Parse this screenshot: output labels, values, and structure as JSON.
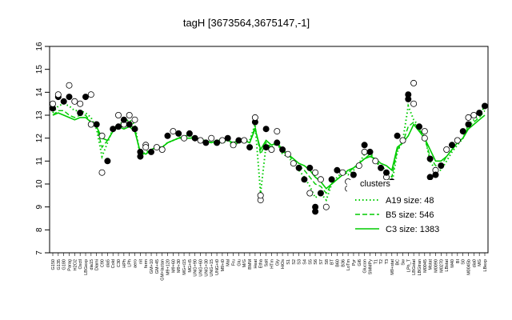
{
  "chart_data": {
    "type": "line",
    "title": "tagH [3673564,3675147,-1]",
    "xlabel": "",
    "ylabel": "",
    "ylim": [
      7,
      16
    ],
    "yticks": [
      7,
      8,
      9,
      10,
      11,
      12,
      13,
      14,
      15,
      16
    ],
    "grid": false,
    "legend": {
      "title": "clusters",
      "placement": "right",
      "entries": [
        {
          "label": "A19 size: 48",
          "style": "dotted",
          "color": "#00cc00"
        },
        {
          "label": "B5 size: 546",
          "style": "dashed",
          "color": "#00cc00"
        },
        {
          "label": "C3 size: 1383",
          "style": "solid",
          "color": "#00cc00"
        }
      ]
    },
    "x_labels": [
      "G150",
      "G135",
      "G180",
      "Parag",
      "H2O2",
      "Oxctl",
      "LBGexp",
      "dia15",
      "Diami",
      "C90",
      "dia5",
      "Cold",
      "C30",
      "HPh",
      "LPh",
      "aero",
      "nit",
      "ferm",
      "GM+10",
      "GM+45",
      "GM+lactan",
      "M9+120",
      "M9+60",
      "M9+30",
      "MG+t15",
      "MG+t5",
      "UNG+90",
      "UNG+60",
      "UNG+30",
      "UNG+15",
      "UNG+t0",
      "M9+t0",
      "Mal",
      "Fru",
      "Glu",
      "M/G",
      "BMM",
      "Heat",
      "Etha",
      "Salt",
      "HTm",
      "Gly",
      "HiOs",
      "S1",
      "S2",
      "S3",
      "S4",
      "S5",
      "S6",
      "S7",
      "S8",
      "BT",
      "B60",
      "B36",
      "LoTm",
      "Pyr",
      "Gl6",
      "Glucon",
      "SMMPy",
      "T1",
      "T2",
      "T3",
      "M9+stat",
      "BC",
      "Sw",
      "LPh_T",
      "LBGstat",
      "LBGtran",
      "M0045",
      "Mstat",
      "M0090",
      "M0270",
      "LBstat",
      "M40",
      "BI",
      "S0",
      "M0045b",
      "dia0",
      "MG",
      "LBexp"
    ],
    "series": [
      {
        "name": "C3",
        "style": "solid",
        "values": [
          13.0,
          13.1,
          13.0,
          12.9,
          12.8,
          12.9,
          12.9,
          12.7,
          12.5,
          12.0,
          11.9,
          12.3,
          12.5,
          12.4,
          12.5,
          12.3,
          11.4,
          11.3,
          11.5,
          11.6,
          11.6,
          11.8,
          11.9,
          12.0,
          12.0,
          12.0,
          12.0,
          11.9,
          11.9,
          11.8,
          11.9,
          11.9,
          11.9,
          11.8,
          11.9,
          11.9,
          11.8,
          12.4,
          11.5,
          11.9,
          11.7,
          11.8,
          11.5,
          11.3,
          11.1,
          10.9,
          10.8,
          10.6,
          10.3,
          10.1,
          9.8,
          10.0,
          10.2,
          10.4,
          10.6,
          10.7,
          10.9,
          11.1,
          11.2,
          11.1,
          10.9,
          10.8,
          10.6,
          11.6,
          11.8,
          12.1,
          12.6,
          12.3,
          12.0,
          11.5,
          11.0,
          11.0,
          11.2,
          11.5,
          11.8,
          12.0,
          12.4,
          12.6,
          12.8,
          13.0
        ]
      },
      {
        "name": "B5",
        "style": "dashed",
        "values": [
          13.0,
          13.2,
          13.2,
          13.0,
          12.9,
          13.0,
          13.0,
          12.7,
          12.5,
          11.6,
          11.9,
          12.3,
          12.5,
          12.5,
          12.6,
          12.4,
          11.3,
          11.3,
          11.5,
          11.6,
          11.6,
          11.8,
          11.9,
          12.0,
          12.1,
          12.1,
          12.0,
          11.9,
          11.9,
          11.8,
          11.9,
          11.9,
          11.9,
          11.8,
          11.9,
          11.9,
          11.8,
          12.5,
          11.3,
          11.8,
          11.6,
          11.8,
          11.4,
          11.3,
          11.0,
          10.8,
          10.6,
          10.3,
          10.0,
          9.9,
          9.6,
          10.0,
          10.2,
          10.4,
          10.5,
          10.7,
          10.9,
          11.1,
          11.3,
          11.0,
          10.8,
          10.6,
          10.3,
          11.5,
          11.8,
          12.5,
          12.7,
          12.4,
          12.0,
          11.2,
          10.8,
          10.8,
          11.2,
          11.5,
          11.8,
          12.0,
          12.5,
          12.7,
          12.9,
          13.2
        ]
      },
      {
        "name": "A19",
        "style": "dotted",
        "values": [
          13.1,
          13.4,
          13.5,
          13.4,
          13.2,
          13.2,
          13.1,
          12.9,
          12.4,
          11.2,
          11.8,
          12.4,
          12.6,
          12.7,
          12.8,
          12.6,
          11.2,
          11.4,
          11.5,
          11.6,
          11.6,
          11.8,
          11.9,
          12.0,
          12.1,
          12.1,
          12.0,
          11.9,
          11.9,
          11.8,
          11.8,
          11.8,
          11.9,
          11.7,
          11.8,
          11.9,
          11.9,
          12.6,
          9.6,
          11.7,
          11.6,
          11.8,
          11.3,
          11.2,
          10.9,
          10.6,
          10.3,
          9.9,
          9.4,
          9.6,
          9.3,
          10.0,
          10.3,
          10.5,
          10.4,
          10.6,
          10.9,
          11.3,
          11.4,
          11.0,
          10.7,
          10.4,
          10.0,
          11.4,
          11.9,
          13.4,
          12.8,
          12.5,
          12.1,
          11.0,
          10.6,
          10.6,
          11.0,
          11.4,
          11.7,
          12.0,
          12.6,
          12.8,
          13.0,
          13.4
        ]
      }
    ],
    "points": [
      {
        "x": 0,
        "y": 13.3,
        "filled": true
      },
      {
        "x": 0,
        "y": 13.5,
        "filled": false
      },
      {
        "x": 1,
        "y": 13.8,
        "filled": true
      },
      {
        "x": 1,
        "y": 13.9,
        "filled": false
      },
      {
        "x": 2,
        "y": 13.6,
        "filled": true
      },
      {
        "x": 3,
        "y": 14.3,
        "filled": false
      },
      {
        "x": 3,
        "y": 13.8,
        "filled": true
      },
      {
        "x": 4,
        "y": 13.6,
        "filled": false
      },
      {
        "x": 5,
        "y": 13.5,
        "filled": false
      },
      {
        "x": 5,
        "y": 13.1,
        "filled": true
      },
      {
        "x": 6,
        "y": 13.8,
        "filled": true
      },
      {
        "x": 7,
        "y": 12.6,
        "filled": false
      },
      {
        "x": 7,
        "y": 13.9,
        "filled": false
      },
      {
        "x": 8,
        "y": 12.6,
        "filled": true
      },
      {
        "x": 9,
        "y": 10.5,
        "filled": false
      },
      {
        "x": 9,
        "y": 12.1,
        "filled": false
      },
      {
        "x": 10,
        "y": 11.0,
        "filled": true
      },
      {
        "x": 11,
        "y": 12.4,
        "filled": true
      },
      {
        "x": 12,
        "y": 13.0,
        "filled": false
      },
      {
        "x": 12,
        "y": 12.5,
        "filled": true
      },
      {
        "x": 13,
        "y": 12.6,
        "filled": false
      },
      {
        "x": 13,
        "y": 12.8,
        "filled": true
      },
      {
        "x": 14,
        "y": 13.0,
        "filled": false
      },
      {
        "x": 14,
        "y": 12.6,
        "filled": true
      },
      {
        "x": 15,
        "y": 12.8,
        "filled": false
      },
      {
        "x": 15,
        "y": 12.4,
        "filled": true
      },
      {
        "x": 16,
        "y": 11.4,
        "filled": true
      },
      {
        "x": 16,
        "y": 11.2,
        "filled": true
      },
      {
        "x": 17,
        "y": 11.7,
        "filled": false
      },
      {
        "x": 17,
        "y": 11.6,
        "filled": false
      },
      {
        "x": 18,
        "y": 11.4,
        "filled": true
      },
      {
        "x": 19,
        "y": 11.6,
        "filled": false
      },
      {
        "x": 20,
        "y": 11.5,
        "filled": false
      },
      {
        "x": 21,
        "y": 12.1,
        "filled": true
      },
      {
        "x": 22,
        "y": 12.3,
        "filled": false
      },
      {
        "x": 23,
        "y": 12.2,
        "filled": true
      },
      {
        "x": 24,
        "y": 12.0,
        "filled": false
      },
      {
        "x": 25,
        "y": 12.2,
        "filled": true
      },
      {
        "x": 26,
        "y": 12.0,
        "filled": true
      },
      {
        "x": 27,
        "y": 11.9,
        "filled": false
      },
      {
        "x": 28,
        "y": 11.8,
        "filled": true
      },
      {
        "x": 29,
        "y": 12.0,
        "filled": false
      },
      {
        "x": 30,
        "y": 11.8,
        "filled": true
      },
      {
        "x": 31,
        "y": 11.9,
        "filled": false
      },
      {
        "x": 32,
        "y": 12.0,
        "filled": true
      },
      {
        "x": 33,
        "y": 11.7,
        "filled": false
      },
      {
        "x": 34,
        "y": 11.9,
        "filled": true
      },
      {
        "x": 35,
        "y": 11.9,
        "filled": false
      },
      {
        "x": 36,
        "y": 11.6,
        "filled": true
      },
      {
        "x": 37,
        "y": 12.7,
        "filled": true
      },
      {
        "x": 37,
        "y": 12.9,
        "filled": false
      },
      {
        "x": 38,
        "y": 9.3,
        "filled": false
      },
      {
        "x": 38,
        "y": 9.5,
        "filled": false
      },
      {
        "x": 39,
        "y": 12.4,
        "filled": true
      },
      {
        "x": 39,
        "y": 11.6,
        "filled": true
      },
      {
        "x": 40,
        "y": 11.5,
        "filled": false
      },
      {
        "x": 41,
        "y": 12.3,
        "filled": false
      },
      {
        "x": 41,
        "y": 11.8,
        "filled": true
      },
      {
        "x": 42,
        "y": 11.5,
        "filled": true
      },
      {
        "x": 43,
        "y": 11.3,
        "filled": false
      },
      {
        "x": 44,
        "y": 10.9,
        "filled": false
      },
      {
        "x": 45,
        "y": 10.7,
        "filled": true
      },
      {
        "x": 46,
        "y": 10.2,
        "filled": true
      },
      {
        "x": 47,
        "y": 10.7,
        "filled": true
      },
      {
        "x": 47,
        "y": 9.6,
        "filled": false
      },
      {
        "x": 48,
        "y": 8.8,
        "filled": true
      },
      {
        "x": 48,
        "y": 9.0,
        "filled": true
      },
      {
        "x": 48,
        "y": 10.5,
        "filled": false
      },
      {
        "x": 49,
        "y": 10.2,
        "filled": false
      },
      {
        "x": 49,
        "y": 9.6,
        "filled": true
      },
      {
        "x": 50,
        "y": 9.0,
        "filled": false
      },
      {
        "x": 51,
        "y": 10.2,
        "filled": true
      },
      {
        "x": 52,
        "y": 10.6,
        "filled": true
      },
      {
        "x": 53,
        "y": 10.5,
        "filled": false
      },
      {
        "x": 54,
        "y": 9.8,
        "filled": false
      },
      {
        "x": 54,
        "y": 10.1,
        "filled": false
      },
      {
        "x": 55,
        "y": 10.4,
        "filled": true
      },
      {
        "x": 56,
        "y": 10.8,
        "filled": false
      },
      {
        "x": 57,
        "y": 11.7,
        "filled": true
      },
      {
        "x": 57,
        "y": 11.4,
        "filled": false
      },
      {
        "x": 58,
        "y": 11.4,
        "filled": true
      },
      {
        "x": 59,
        "y": 11.0,
        "filled": false
      },
      {
        "x": 60,
        "y": 10.7,
        "filled": true
      },
      {
        "x": 61,
        "y": 10.3,
        "filled": false
      },
      {
        "x": 61,
        "y": 10.5,
        "filled": true
      },
      {
        "x": 62,
        "y": 9.9,
        "filled": false
      },
      {
        "x": 62,
        "y": 10.1,
        "filled": true
      },
      {
        "x": 63,
        "y": 12.1,
        "filled": true
      },
      {
        "x": 64,
        "y": 11.9,
        "filled": false
      },
      {
        "x": 65,
        "y": 13.9,
        "filled": true
      },
      {
        "x": 65,
        "y": 13.7,
        "filled": true
      },
      {
        "x": 66,
        "y": 14.4,
        "filled": false
      },
      {
        "x": 66,
        "y": 13.5,
        "filled": false
      },
      {
        "x": 67,
        "y": 12.5,
        "filled": true
      },
      {
        "x": 68,
        "y": 12.3,
        "filled": false
      },
      {
        "x": 68,
        "y": 12.0,
        "filled": false
      },
      {
        "x": 69,
        "y": 11.1,
        "filled": true
      },
      {
        "x": 69,
        "y": 10.3,
        "filled": true
      },
      {
        "x": 70,
        "y": 10.6,
        "filled": false
      },
      {
        "x": 70,
        "y": 10.4,
        "filled": true
      },
      {
        "x": 71,
        "y": 10.8,
        "filled": true
      },
      {
        "x": 72,
        "y": 11.5,
        "filled": false
      },
      {
        "x": 73,
        "y": 11.7,
        "filled": true
      },
      {
        "x": 74,
        "y": 11.9,
        "filled": false
      },
      {
        "x": 75,
        "y": 12.3,
        "filled": true
      },
      {
        "x": 76,
        "y": 12.6,
        "filled": true
      },
      {
        "x": 76,
        "y": 12.9,
        "filled": false
      },
      {
        "x": 77,
        "y": 13.0,
        "filled": false
      },
      {
        "x": 78,
        "y": 13.1,
        "filled": true
      },
      {
        "x": 79,
        "y": 13.4,
        "filled": true
      }
    ],
    "colors": {
      "line": "#00cc00",
      "point_fill": "#000000",
      "axis": "#000000"
    }
  }
}
